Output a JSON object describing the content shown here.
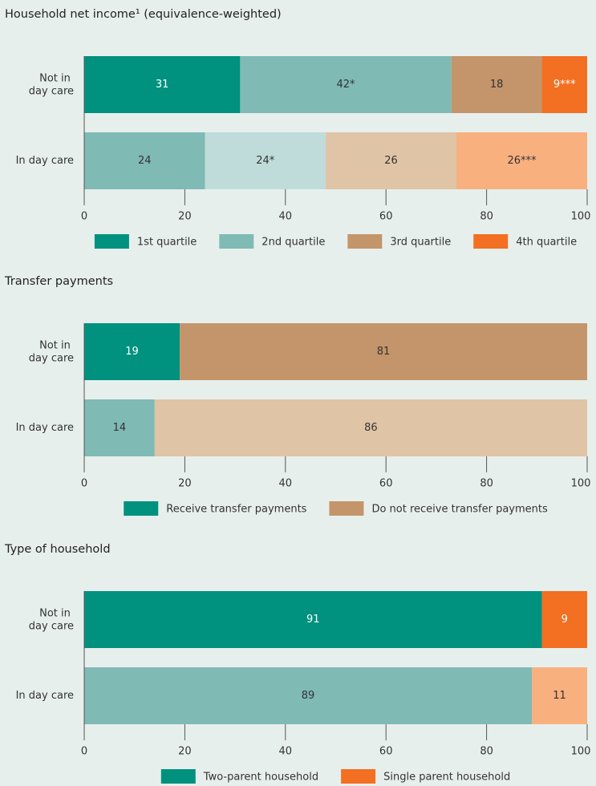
{
  "chart_data": [
    {
      "type": "stacked-bar-horizontal",
      "title": "Household net income¹ (equivalence-weighted)",
      "categories": [
        "Not in day care",
        "In day care"
      ],
      "series": [
        {
          "name": "1st quartile",
          "colors": [
            "#00917f",
            "#7fbab5"
          ],
          "values": [
            31,
            24
          ]
        },
        {
          "name": "2nd quartile",
          "colors": [
            "#7fbab5",
            "#bfdcda"
          ],
          "values": [
            42,
            24
          ],
          "value_labels": [
            "42*",
            "24*"
          ]
        },
        {
          "name": "3rd quartile",
          "colors": [
            "#c4956a",
            "#e0c4a6"
          ],
          "values": [
            18,
            26
          ]
        },
        {
          "name": "4th quartile",
          "colors": [
            "#f36f21",
            "#f8b07f"
          ],
          "values": [
            9,
            26
          ],
          "value_labels": [
            "9***",
            "26***"
          ]
        }
      ],
      "xlim": [
        0,
        100
      ],
      "xticks": [
        0,
        20,
        40,
        60,
        80,
        100
      ]
    },
    {
      "type": "stacked-bar-horizontal",
      "title": "Transfer payments",
      "categories": [
        "Not in day care",
        "In day care"
      ],
      "series": [
        {
          "name": "Receive transfer payments",
          "colors": [
            "#00917f",
            "#7fbab5"
          ],
          "values": [
            19,
            14
          ]
        },
        {
          "name": "Do not receive transfer payments",
          "colors": [
            "#c4956a",
            "#e0c4a6"
          ],
          "values": [
            81,
            86
          ]
        }
      ],
      "xlim": [
        0,
        100
      ],
      "xticks": [
        0,
        20,
        40,
        60,
        80,
        100
      ]
    },
    {
      "type": "stacked-bar-horizontal",
      "title": "Type of household",
      "categories": [
        "Not in day care",
        "In day care"
      ],
      "series": [
        {
          "name": "Two-parent household",
          "colors": [
            "#00917f",
            "#7fbab5"
          ],
          "values": [
            91,
            89
          ]
        },
        {
          "name": "Single parent household",
          "colors": [
            "#f36f21",
            "#f8b07f"
          ],
          "values": [
            9,
            11
          ]
        }
      ],
      "xlim": [
        0,
        100
      ],
      "xticks": [
        0,
        20,
        40,
        60,
        80,
        100
      ]
    }
  ]
}
